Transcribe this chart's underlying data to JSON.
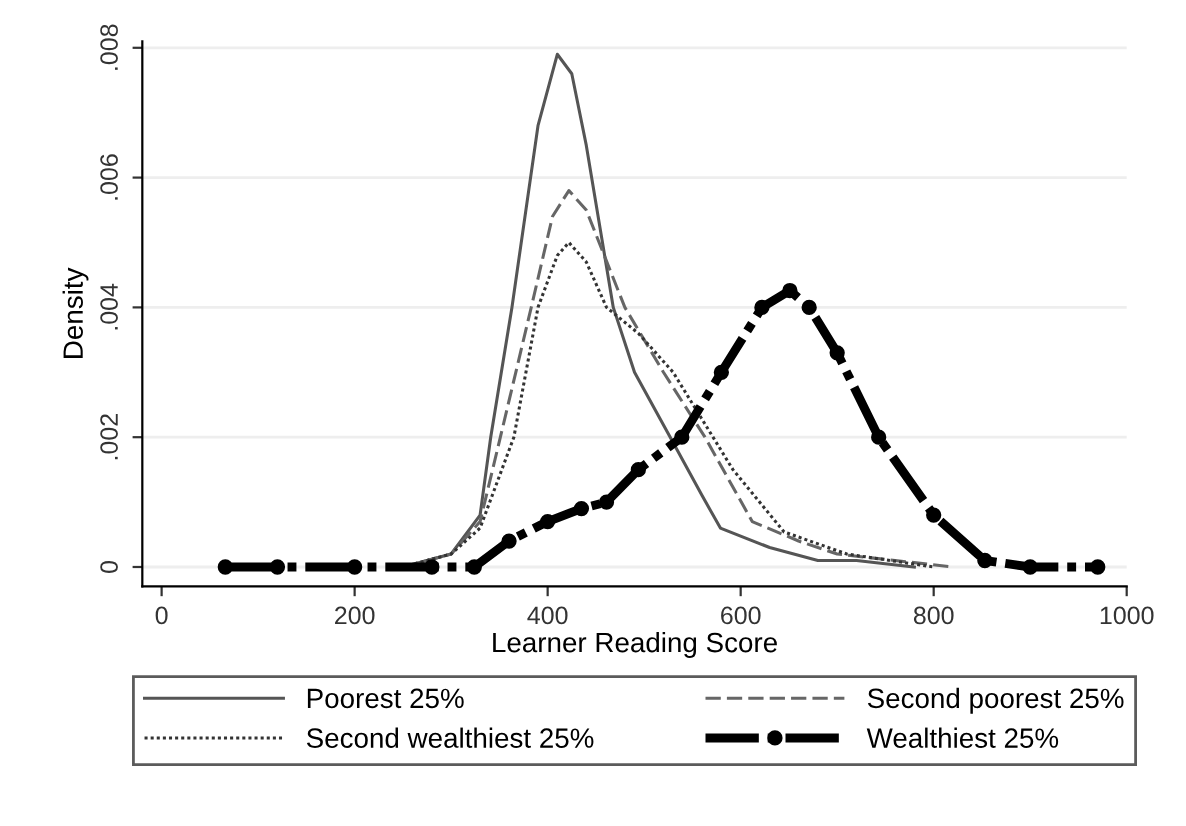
{
  "chart_data": {
    "type": "line",
    "xlabel": "Learner Reading Score",
    "ylabel": "Density",
    "xlim": [
      -20,
      1000
    ],
    "ylim": [
      -0.0003,
      0.0081
    ],
    "xticks": [
      0,
      200,
      400,
      600,
      800,
      1000
    ],
    "yticks": [
      0,
      {
        "value": 0.002,
        "label": ".002"
      },
      {
        "value": 0.004,
        "label": ".004"
      },
      {
        "value": 0.006,
        "label": ".006"
      },
      {
        "value": 0.008,
        "label": ".008"
      }
    ],
    "grid": "y",
    "legend": "bottom",
    "series": [
      {
        "name": "Poorest 25%",
        "color": "#555555",
        "line_style": "solid",
        "marker": "none",
        "x": [
          250,
          300,
          330,
          341,
          363,
          390,
          410,
          425,
          440,
          468,
          490,
          527,
          560,
          579,
          630,
          680,
          720,
          780
        ],
        "values": [
          0,
          0.0002,
          0.0008,
          0.002,
          0.004,
          0.0068,
          0.0079,
          0.0076,
          0.0065,
          0.004,
          0.003,
          0.002,
          0.0011,
          0.0006,
          0.0003,
          0.0001,
          0.0001,
          0
        ]
      },
      {
        "name": "Second poorest 25%",
        "color": "#666666",
        "line_style": "dashed",
        "marker": "none",
        "x": [
          250,
          300,
          330,
          351,
          383,
          405,
          422,
          440,
          480,
          520,
          563,
          612,
          660,
          700,
          760,
          820
        ],
        "values": [
          0,
          0.0002,
          0.0007,
          0.002,
          0.004,
          0.0054,
          0.0058,
          0.0055,
          0.004,
          0.003,
          0.002,
          0.0007,
          0.0004,
          0.0002,
          0.0001,
          0
        ]
      },
      {
        "name": "Second wealthiest 25%",
        "color": "#333333",
        "line_style": "dotted",
        "marker": "none",
        "x": [
          250,
          300,
          330,
          365,
          390,
          410,
          422,
          440,
          461,
          494,
          530,
          559,
          592,
          645,
          710,
          800
        ],
        "values": [
          0,
          0.0002,
          0.0006,
          0.002,
          0.004,
          0.0048,
          0.005,
          0.0047,
          0.004,
          0.0036,
          0.003,
          0.0023,
          0.0015,
          0.00054,
          0.0002,
          0
        ]
      },
      {
        "name": "Wealthiest 25%",
        "color": "#000000",
        "line_style": "dashed",
        "marker": "circle",
        "x": [
          66,
          120,
          200,
          280,
          324,
          360,
          400,
          435,
          461,
          494,
          539,
          580,
          622,
          651,
          671,
          700,
          743,
          800,
          853,
          900,
          970
        ],
        "values": [
          0,
          0,
          0,
          0,
          0,
          0.0004,
          0.0007,
          0.0009,
          0.001,
          0.0015,
          0.002,
          0.003,
          0.004,
          0.00426,
          0.004,
          0.0033,
          0.002,
          0.0008,
          0.0001,
          0,
          0
        ]
      }
    ]
  }
}
